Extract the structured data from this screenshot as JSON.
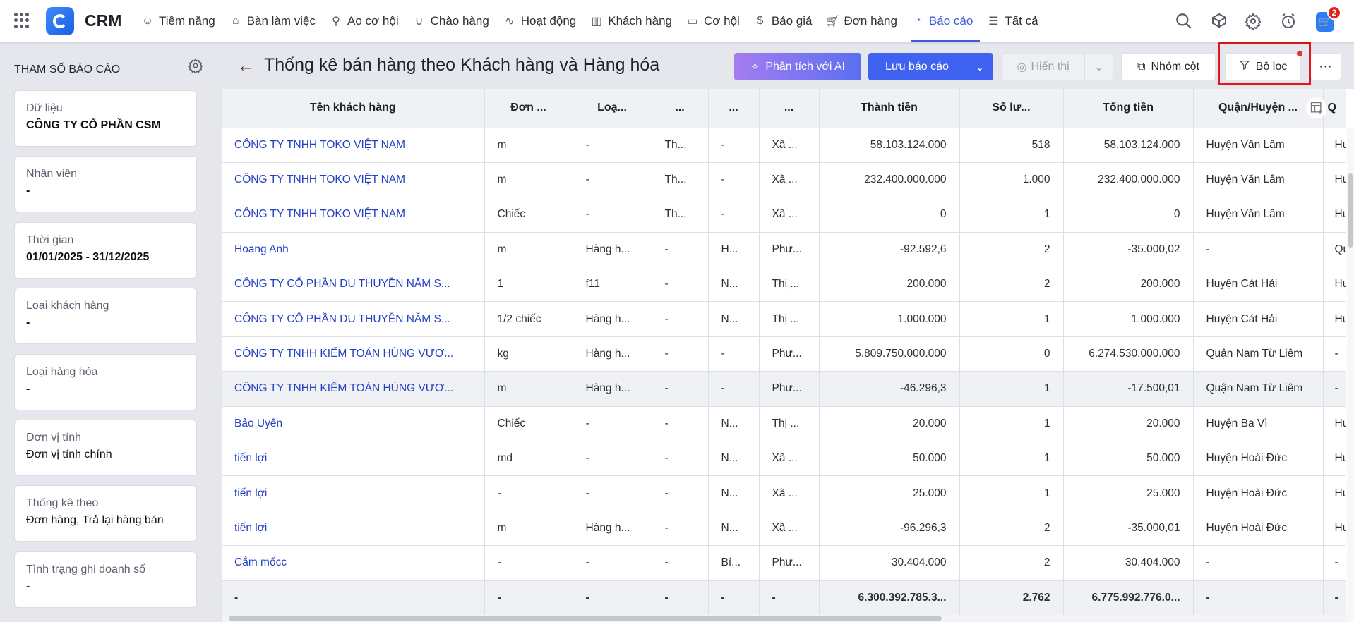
{
  "app": {
    "brand": "CRM",
    "cart_count": "2"
  },
  "nav": [
    {
      "label": "Tiềm năng",
      "icon": "user-circle-icon"
    },
    {
      "label": "Bàn làm việc",
      "icon": "home-icon"
    },
    {
      "label": "Ao cơ hội",
      "icon": "funnel-icon"
    },
    {
      "label": "Chào hàng",
      "icon": "magnet-icon"
    },
    {
      "label": "Hoạt động",
      "icon": "activity-icon"
    },
    {
      "label": "Khách hàng",
      "icon": "building-icon"
    },
    {
      "label": "Cơ hội",
      "icon": "wallet-icon"
    },
    {
      "label": "Báo giá",
      "icon": "dollar-doc-icon"
    },
    {
      "label": "Đơn hàng",
      "icon": "cart-icon"
    },
    {
      "label": "Báo cáo",
      "icon": "pie-chart-icon",
      "active": true
    },
    {
      "label": "Tất cả",
      "icon": "menu-icon"
    }
  ],
  "sidebar": {
    "title": "THAM SỐ BÁO CÁO",
    "params": [
      {
        "label": "Dữ liệu",
        "value": "CÔNG TY CỔ PHẦN CSM"
      },
      {
        "label": "Nhân viên",
        "value": "-"
      },
      {
        "label": "Thời gian",
        "value": "01/01/2025 - 31/12/2025"
      },
      {
        "label": "Loại khách hàng",
        "value": "-"
      },
      {
        "label": "Loại hàng hóa",
        "value": "-"
      },
      {
        "label": "Đơn vị tính",
        "value": "Đơn vị tính chính"
      },
      {
        "label": "Thống kê theo",
        "value": "Đơn hàng, Trả lại hàng bán"
      },
      {
        "label": "Tình trạng ghi doanh số",
        "value": "-"
      }
    ]
  },
  "toolbar": {
    "title": "Thống kê bán hàng theo Khách hàng và Hàng hóa",
    "ai_label": "Phân tích với AI",
    "save_label": "Lưu báo cáo",
    "view_label": "Hiển thị",
    "group_label": "Nhóm cột",
    "filter_label": "Bộ lọc",
    "more_label": "···"
  },
  "table": {
    "columns": [
      "Tên khách hàng",
      "Đơn ...",
      "Loạ...",
      "...",
      "...",
      "...",
      "Thành tiền",
      "Số lư...",
      "Tổng tiền",
      "Quận/Huyện ...",
      "Q"
    ],
    "rows": [
      [
        "CÔNG TY TNHH TOKO VIỆT NAM",
        "m",
        "-",
        "Th...",
        "-",
        "Xã ...",
        "58.103.124.000",
        "518",
        "58.103.124.000",
        "Huyện Văn Lâm",
        "Hu"
      ],
      [
        "CÔNG TY TNHH TOKO VIỆT NAM",
        "m",
        "-",
        "Th...",
        "-",
        "Xã ...",
        "232.400.000.000",
        "1.000",
        "232.400.000.000",
        "Huyện Văn Lâm",
        "Hu"
      ],
      [
        "CÔNG TY TNHH TOKO VIỆT NAM",
        "Chiếc",
        "-",
        "Th...",
        "-",
        "Xã ...",
        "0",
        "1",
        "0",
        "Huyện Văn Lâm",
        "Hu"
      ],
      [
        "Hoang Anh",
        "m",
        "Hàng h...",
        "-",
        "H...",
        "Phư...",
        "-92.592,6",
        "2",
        "-35.000,02",
        "-",
        "Qu"
      ],
      [
        "CÔNG TY CỔ PHẦN DU THUYỀN NĂM S...",
        "1",
        "f11",
        "-",
        "N...",
        "Thị ...",
        "200.000",
        "2",
        "200.000",
        "Huyện Cát Hải",
        "Hu"
      ],
      [
        "CÔNG TY CỔ PHẦN DU THUYỀN NĂM S...",
        "1/2 chiếc",
        "Hàng h...",
        "-",
        "N...",
        "Thị ...",
        "1.000.000",
        "1",
        "1.000.000",
        "Huyện Cát Hải",
        "Hu"
      ],
      [
        "CÔNG TY TNHH KIỂM TOÁN HÙNG VƯƠ...",
        "kg",
        "Hàng h...",
        "-",
        "-",
        "Phư...",
        "5.809.750.000.000",
        "0",
        "6.274.530.000.000",
        "Quận Nam Từ Liêm",
        "-"
      ],
      [
        "CÔNG TY TNHH KIỂM TOÁN HÙNG VƯƠ...",
        "m",
        "Hàng h...",
        "-",
        "-",
        "Phư...",
        "-46.296,3",
        "1",
        "-17.500,01",
        "Quận Nam Từ Liêm",
        "-"
      ],
      [
        "Bảo Uyên",
        "Chiếc",
        "-",
        "-",
        "N...",
        "Thị ...",
        "20.000",
        "1",
        "20.000",
        "Huyện Ba Vì",
        "Hu"
      ],
      [
        "tiến lợi",
        "md",
        "-",
        "-",
        "N...",
        "Xã ...",
        "50.000",
        "1",
        "50.000",
        "Huyện Hoài Đức",
        "Hu"
      ],
      [
        "tiến lợi",
        "-",
        "-",
        "-",
        "N...",
        "Xã ...",
        "25.000",
        "1",
        "25.000",
        "Huyện Hoài Đức",
        "Hu"
      ],
      [
        "tiến lợi",
        "m",
        "Hàng h...",
        "-",
        "N...",
        "Xã ...",
        "-96.296,3",
        "2",
        "-35.000,01",
        "Huyện Hoài Đức",
        "Hu"
      ],
      [
        "Cắm mốcc",
        "-",
        "-",
        "-",
        "Bí...",
        "Phư...",
        "30.404.000",
        "2",
        "30.404.000",
        "-",
        "-"
      ]
    ],
    "totals": [
      "-",
      "-",
      "-",
      "-",
      "-",
      "-",
      "6.300.392.785.3...",
      "2.762",
      "6.775.992.776.0...",
      "-",
      "-"
    ]
  }
}
